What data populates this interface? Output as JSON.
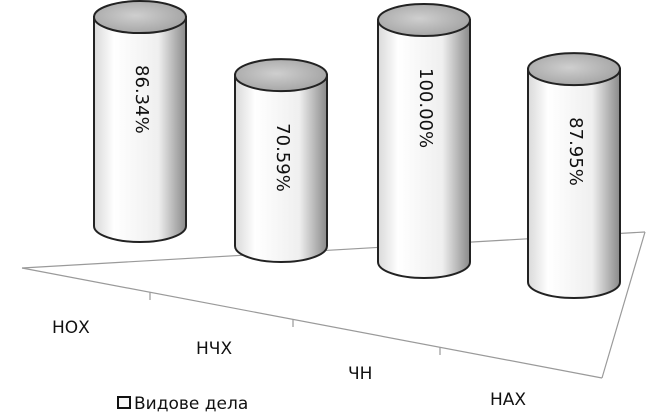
{
  "chart_data": {
    "type": "bar",
    "style": "3d-cylinder",
    "categories": [
      "НОХ",
      "НЧХ",
      "ЧН",
      "НАХ"
    ],
    "series": [
      {
        "name": "Видове дела",
        "values": [
          86.34,
          70.59,
          100.0,
          87.95
        ]
      }
    ],
    "value_labels": [
      "86.34%",
      "70.59%",
      "100.00%",
      "87.95%"
    ],
    "unit": "%",
    "ylim": [
      0,
      100
    ],
    "grid": false,
    "legend": {
      "position": "bottom-left",
      "label": "Видове дела"
    },
    "colors": {
      "cylinder_body": "#f6f6f6",
      "cylinder_top": "#bdbdbd",
      "outline": "#222222",
      "floor_line": "#9a9a9a",
      "text": "#111111"
    }
  }
}
